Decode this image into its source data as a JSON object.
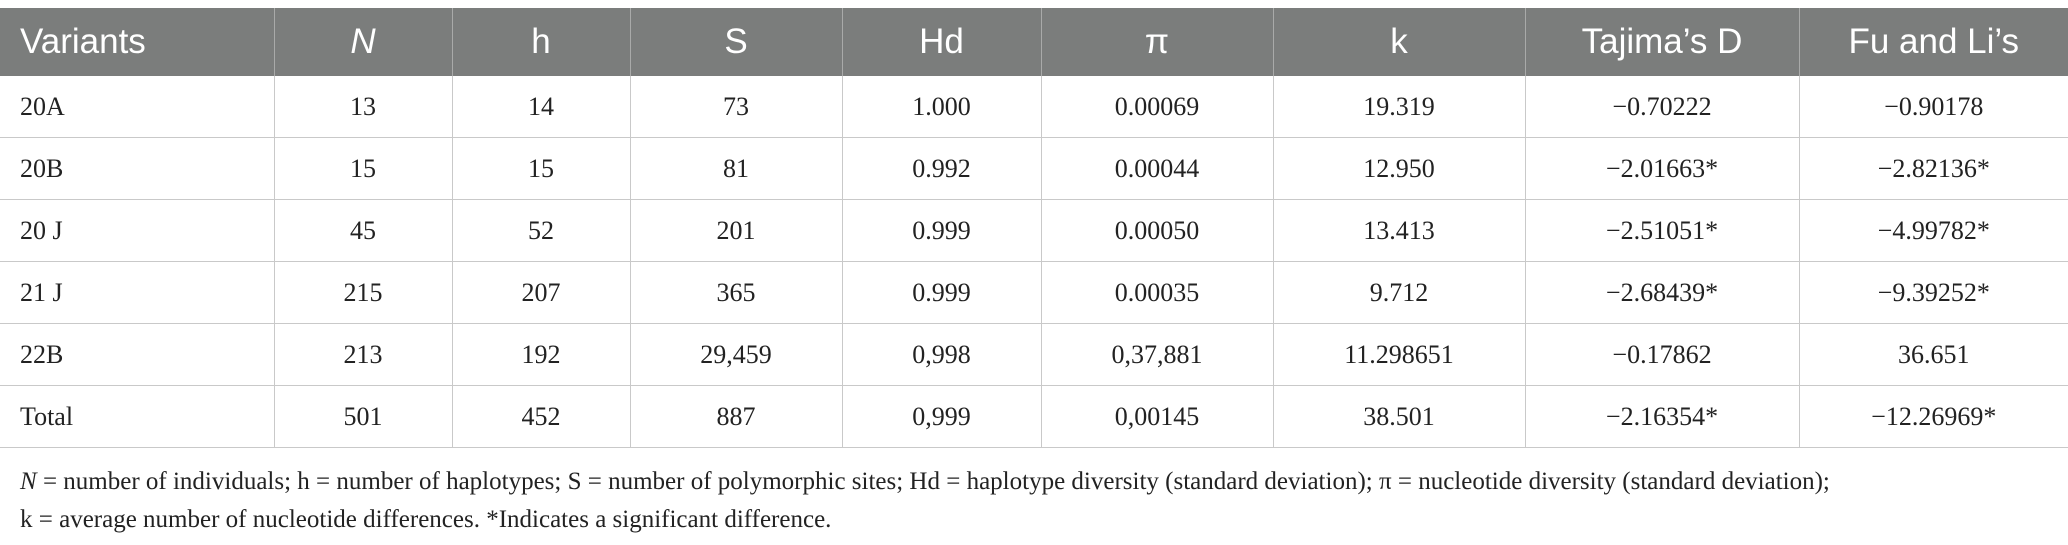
{
  "table": {
    "headers": [
      "Variants",
      "N",
      "h",
      "S",
      "Hd",
      "π",
      "k",
      "Tajima’s D",
      "Fu and Li’s"
    ],
    "rows": [
      [
        "20A",
        "13",
        "14",
        "73",
        "1.000",
        "0.00069",
        "19.319",
        "−0.70222",
        "−0.90178"
      ],
      [
        "20B",
        "15",
        "15",
        "81",
        "0.992",
        "0.00044",
        "12.950",
        "−2.01663*",
        "−2.82136*"
      ],
      [
        "20 J",
        "45",
        "52",
        "201",
        "0.999",
        "0.00050",
        "13.413",
        "−2.51051*",
        "−4.99782*"
      ],
      [
        "21 J",
        "215",
        "207",
        "365",
        "0.999",
        "0.00035",
        "9.712",
        "−2.68439*",
        "−9.39252*"
      ],
      [
        "22B",
        "213",
        "192",
        "29,459",
        "0,998",
        "0,37,881",
        "11.298651",
        "−0.17862",
        "36.651"
      ],
      [
        "Total",
        "501",
        "452",
        "887",
        "0,999",
        "0,00145",
        "38.501",
        "−2.16354*",
        "−12.26969*"
      ]
    ]
  },
  "footnote": {
    "n_symbol": "N",
    "line1_rest": " = number of individuals; h = number of haplotypes; S = number of polymorphic sites; Hd = haplotype diversity (standard deviation); π = nucleotide diversity (standard deviation);",
    "line2": "k = average number of nucleotide differences. *Indicates a significant difference."
  },
  "colors": {
    "header_bg": "#7b7d7c",
    "header_text": "#ffffff",
    "grid": "#c9c9c9"
  }
}
